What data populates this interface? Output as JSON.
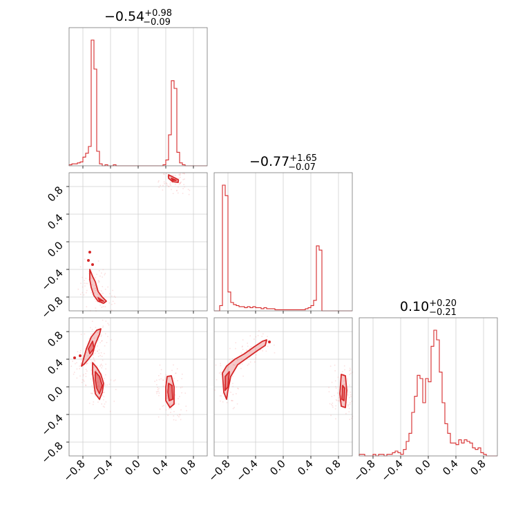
{
  "colors": {
    "accent": "#d62728",
    "scatter": "#f4a6a6"
  },
  "chart_data": {
    "type": "corner",
    "parameters": 3,
    "axis_range": [
      -1.0,
      1.0
    ],
    "ticks": [
      "−0.8",
      "−0.4",
      "0.0",
      "0.4",
      "0.8"
    ],
    "tick_values": [
      -0.8,
      -0.4,
      0.0,
      0.4,
      0.8
    ],
    "grid": true,
    "titles": [
      {
        "main": "−0.54",
        "sup": "+0.98",
        "sub": "−0.09"
      },
      {
        "main": "−0.77",
        "sup": "+1.65",
        "sub": "−0.07"
      },
      {
        "main": "0.10",
        "sup": "+0.20",
        "sub": "−0.21"
      }
    ],
    "histograms": [
      {
        "bin_edges_start": -1.0,
        "bin_width": 0.04,
        "counts": [
          1,
          2,
          2,
          3,
          4,
          9,
          13,
          20,
          130,
          100,
          15,
          2,
          0,
          1,
          0,
          0,
          1,
          0,
          0,
          0,
          0,
          0,
          0,
          0,
          0,
          0,
          0,
          0,
          0,
          0,
          0,
          0,
          0,
          0,
          1,
          6,
          32,
          88,
          80,
          14,
          3,
          1,
          0,
          0,
          0,
          0,
          0,
          0,
          0,
          0
        ]
      },
      {
        "bin_edges_start": -1.0,
        "bin_width": 0.04,
        "counts": [
          0,
          0,
          5,
          120,
          110,
          18,
          8,
          6,
          5,
          4,
          4,
          3,
          4,
          3,
          4,
          3,
          3,
          2,
          3,
          2,
          2,
          2,
          1,
          1,
          1,
          1,
          1,
          1,
          1,
          1,
          1,
          1,
          1,
          2,
          3,
          5,
          10,
          62,
          58,
          0,
          0,
          0,
          0,
          0,
          0,
          0,
          0,
          0,
          0,
          0
        ]
      },
      {
        "bin_edges_start": -1.0,
        "bin_width": 0.04,
        "counts": [
          1,
          1,
          0,
          0,
          0,
          1,
          0,
          1,
          1,
          0,
          1,
          1,
          2,
          3,
          2,
          1,
          4,
          9,
          14,
          27,
          37,
          50,
          48,
          33,
          48,
          46,
          68,
          78,
          72,
          52,
          33,
          20,
          14,
          8,
          8,
          7,
          10,
          8,
          10,
          9,
          8,
          5,
          4,
          5,
          2,
          1,
          0,
          0,
          0,
          0
        ]
      }
    ],
    "pairs": [
      {
        "x_param": 0,
        "y_param": 1,
        "outer_contours": [
          [
            [
              0.44,
              0.97
            ],
            [
              0.52,
              0.93
            ],
            [
              0.58,
              0.9
            ],
            [
              0.58,
              0.86
            ],
            [
              0.5,
              0.87
            ],
            [
              0.44,
              0.92
            ]
          ],
          [
            [
              -0.7,
              -0.4
            ],
            [
              -0.66,
              -0.5
            ],
            [
              -0.62,
              -0.58
            ],
            [
              -0.58,
              -0.72
            ],
            [
              -0.52,
              -0.8
            ],
            [
              -0.46,
              -0.86
            ],
            [
              -0.5,
              -0.89
            ],
            [
              -0.58,
              -0.86
            ],
            [
              -0.64,
              -0.78
            ],
            [
              -0.68,
              -0.66
            ],
            [
              -0.7,
              -0.55
            ]
          ]
        ],
        "inner_contours": [
          [
            [
              0.48,
              0.92
            ],
            [
              0.55,
              0.89
            ],
            [
              0.5,
              0.89
            ]
          ],
          [
            [
              -0.58,
              -0.81
            ],
            [
              -0.5,
              -0.86
            ],
            [
              -0.56,
              -0.85
            ]
          ]
        ],
        "dots": [
          [
            -0.72,
            -0.27
          ],
          [
            -0.7,
            -0.15
          ],
          [
            -0.66,
            -0.33
          ]
        ]
      },
      {
        "x_param": 0,
        "y_param": 2,
        "outer_contours": [
          [
            [
              -0.82,
              0.3
            ],
            [
              -0.75,
              0.55
            ],
            [
              -0.68,
              0.72
            ],
            [
              -0.6,
              0.82
            ],
            [
              -0.54,
              0.84
            ],
            [
              -0.56,
              0.76
            ],
            [
              -0.62,
              0.62
            ],
            [
              -0.66,
              0.48
            ],
            [
              -0.72,
              0.4
            ],
            [
              -0.78,
              0.33
            ]
          ],
          [
            [
              -0.66,
              0.35
            ],
            [
              -0.6,
              0.28
            ],
            [
              -0.54,
              0.18
            ],
            [
              -0.5,
              0.05
            ],
            [
              -0.52,
              -0.08
            ],
            [
              -0.56,
              -0.18
            ],
            [
              -0.62,
              -0.1
            ],
            [
              -0.64,
              0.05
            ],
            [
              -0.66,
              0.2
            ]
          ],
          [
            [
              0.42,
              0.15
            ],
            [
              0.48,
              0.16
            ],
            [
              0.52,
              0.0
            ],
            [
              0.52,
              -0.25
            ],
            [
              0.46,
              -0.3
            ],
            [
              0.4,
              -0.2
            ],
            [
              0.4,
              0.0
            ]
          ]
        ],
        "inner_contours": [
          [
            [
              -0.72,
              0.55
            ],
            [
              -0.66,
              0.66
            ],
            [
              -0.64,
              0.56
            ],
            [
              -0.7,
              0.48
            ]
          ],
          [
            [
              -0.62,
              0.22
            ],
            [
              -0.56,
              0.15
            ],
            [
              -0.52,
              0.02
            ],
            [
              -0.56,
              -0.1
            ],
            [
              -0.6,
              -0.02
            ],
            [
              -0.62,
              0.1
            ]
          ],
          [
            [
              0.44,
              0.05
            ],
            [
              0.49,
              0.02
            ],
            [
              0.5,
              -0.18
            ],
            [
              0.45,
              -0.2
            ],
            [
              0.43,
              -0.08
            ]
          ]
        ],
        "dots": [
          [
            -0.84,
            0.45
          ],
          [
            -0.92,
            0.42
          ]
        ]
      },
      {
        "x_param": 1,
        "y_param": 2,
        "outer_contours": [
          [
            [
              -0.88,
              0.2
            ],
            [
              -0.82,
              0.3
            ],
            [
              -0.7,
              0.4
            ],
            [
              -0.56,
              0.48
            ],
            [
              -0.42,
              0.58
            ],
            [
              -0.3,
              0.66
            ],
            [
              -0.24,
              0.68
            ],
            [
              -0.26,
              0.6
            ],
            [
              -0.38,
              0.52
            ],
            [
              -0.52,
              0.42
            ],
            [
              -0.66,
              0.32
            ],
            [
              -0.76,
              0.15
            ],
            [
              -0.8,
              -0.05
            ],
            [
              -0.82,
              -0.18
            ],
            [
              -0.86,
              -0.08
            ]
          ],
          [
            [
              0.84,
              0.18
            ],
            [
              0.9,
              0.16
            ],
            [
              0.92,
              -0.05
            ],
            [
              0.9,
              -0.3
            ],
            [
              0.84,
              -0.28
            ],
            [
              0.82,
              -0.1
            ]
          ]
        ],
        "inner_contours": [
          [
            [
              -0.84,
              0.15
            ],
            [
              -0.78,
              0.22
            ],
            [
              -0.8,
              0.0
            ],
            [
              -0.84,
              -0.05
            ]
          ],
          [
            [
              0.86,
              0.02
            ],
            [
              0.89,
              -0.02
            ],
            [
              0.88,
              -0.2
            ],
            [
              0.85,
              -0.18
            ]
          ]
        ],
        "dots": [
          [
            -0.2,
            0.65
          ]
        ]
      }
    ]
  }
}
